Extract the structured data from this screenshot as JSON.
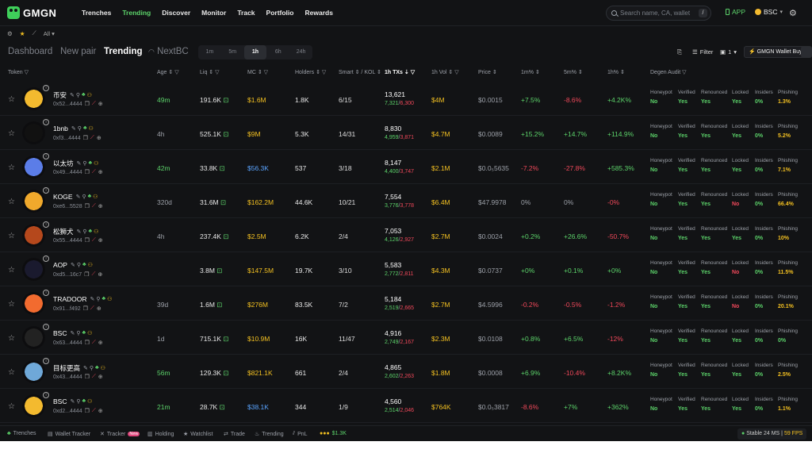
{
  "nav": {
    "brand": "GMGN",
    "links": [
      "Trenches",
      "Trending",
      "Discover",
      "Monitor",
      "Track",
      "Portfolio",
      "Rewards"
    ],
    "active_link": "Trending",
    "search_placeholder": "Search name, CA, wallet",
    "search_shortcut": "/",
    "app_label": "APP",
    "chain": "BSC"
  },
  "subbar": {
    "filter_label": "All"
  },
  "tabs": {
    "items": [
      "Dashboard",
      "New pair",
      "Trending",
      "NextBC"
    ],
    "active": "Trending",
    "timeframes": [
      "1m",
      "5m",
      "1h",
      "6h",
      "24h"
    ],
    "active_timeframe": "1h",
    "filter_label": "Filter",
    "preset": "1",
    "wallet_buy": "GMGN Wallet Buy"
  },
  "columns": {
    "token": "Token",
    "age": "Age",
    "liq": "Liq",
    "mc": "MC",
    "holders": "Holders",
    "smart": "Smart",
    "kol": "KOL",
    "txs": "1h TXs",
    "vol": "1h Vol",
    "price": "Price",
    "p1m": "1m%",
    "p5m": "5m%",
    "p1h": "1h%",
    "audit": "Degen Audit"
  },
  "audit_labels": [
    "Honeypot",
    "Verified",
    "Renounced",
    "Locked",
    "Insiders",
    "Phishing"
  ],
  "rows": [
    {
      "name": "币安",
      "addr": "0x52...4444",
      "age": "49m",
      "age_color": "#5cd36a",
      "liq": "191.6K",
      "mc": "$1.6M",
      "mc_color": "#f3c021",
      "holders": "1.8K",
      "smart": "6/15",
      "txs": "13,621",
      "buys": "7,321",
      "sells": "6,300",
      "vol": "$4M",
      "price": "$0.0015",
      "p1m": "+7.5%",
      "p5m": "-8.6%",
      "p1h": "+4.2K%",
      "audit": [
        "No",
        "Yes",
        "Yes",
        "Yes",
        "0%",
        "1.3%"
      ],
      "avatar": "#f3ba2f"
    },
    {
      "name": "1bnb",
      "addr": "0xf3...4444",
      "age": "4h",
      "age_color": "#9ca0a8",
      "liq": "525.1K",
      "mc": "$9M",
      "mc_color": "#f3c021",
      "holders": "5.3K",
      "smart": "14/31",
      "txs": "8,830",
      "buys": "4,959",
      "sells": "3,871",
      "vol": "$4.7M",
      "price": "$0.0089",
      "p1m": "+15.2%",
      "p5m": "+14.7%",
      "p1h": "+114.9%",
      "audit": [
        "No",
        "Yes",
        "Yes",
        "Yes",
        "0%",
        "5.2%"
      ],
      "avatar": "#111111"
    },
    {
      "name": "以太坊",
      "addr": "0x49...4444",
      "age": "42m",
      "age_color": "#5cd36a",
      "liq": "33.8K",
      "mc": "$56.3K",
      "mc_color": "#5aa4ff",
      "holders": "537",
      "smart": "3/18",
      "txs": "8,147",
      "buys": "4,400",
      "sells": "3,747",
      "vol": "$2.1M",
      "price": "$0.0₅5635",
      "p1m": "-7.2%",
      "p5m": "-27.8%",
      "p1h": "+585.3%",
      "audit": [
        "No",
        "Yes",
        "Yes",
        "Yes",
        "0%",
        "7.1%"
      ],
      "avatar": "#5b7de8"
    },
    {
      "name": "KOGE",
      "addr": "0xe6...5528",
      "age": "320d",
      "age_color": "#9ca0a8",
      "liq": "31.6M",
      "mc": "$162.2M",
      "mc_color": "#f3c021",
      "holders": "44.6K",
      "smart": "10/21",
      "txs": "7,554",
      "buys": "3,776",
      "sells": "3,778",
      "vol": "$6.4M",
      "price": "$47.9978",
      "p1m": "0%",
      "p5m": "0%",
      "p1h": "-0%",
      "audit": [
        "No",
        "Yes",
        "Yes",
        "No",
        "0%",
        "66.4%"
      ],
      "avatar": "#f0a92c"
    },
    {
      "name": "松狮犬",
      "addr": "0x55...4444",
      "age": "4h",
      "age_color": "#9ca0a8",
      "liq": "237.4K",
      "mc": "$2.5M",
      "mc_color": "#f3c021",
      "holders": "6.2K",
      "smart": "2/4",
      "txs": "7,053",
      "buys": "4,126",
      "sells": "2,927",
      "vol": "$2.7M",
      "price": "$0.0024",
      "p1m": "+0.2%",
      "p5m": "+26.6%",
      "p1h": "-50.7%",
      "audit": [
        "No",
        "Yes",
        "Yes",
        "Yes",
        "0%",
        "10%"
      ],
      "avatar": "#b5481c"
    },
    {
      "name": "AOP",
      "addr": "0xd5...16c7",
      "age": "",
      "age_color": "#9ca0a8",
      "liq": "3.8M",
      "mc": "$147.5M",
      "mc_color": "#f3c021",
      "holders": "19.7K",
      "smart": "3/10",
      "txs": "5,583",
      "buys": "2,772",
      "sells": "2,811",
      "vol": "$4.3M",
      "price": "$0.0737",
      "p1m": "+0%",
      "p5m": "+0.1%",
      "p1h": "+0%",
      "audit": [
        "No",
        "Yes",
        "Yes",
        "No",
        "0%",
        "11.5%"
      ],
      "avatar": "#1a1a2e"
    },
    {
      "name": "TRADOOR",
      "addr": "0x91...f492",
      "age": "39d",
      "age_color": "#9ca0a8",
      "liq": "1.6M",
      "mc": "$276M",
      "mc_color": "#f3c021",
      "holders": "83.5K",
      "smart": "7/2",
      "txs": "5,184",
      "buys": "2,519",
      "sells": "2,665",
      "vol": "$2.7M",
      "price": "$4.5996",
      "p1m": "-0.2%",
      "p5m": "-0.5%",
      "p1h": "-1.2%",
      "audit": [
        "No",
        "Yes",
        "Yes",
        "No",
        "0%",
        "20.1%"
      ],
      "avatar": "#f26b2f"
    },
    {
      "name": "BSC",
      "addr": "0x63...4444",
      "age": "1d",
      "age_color": "#9ca0a8",
      "liq": "715.1K",
      "mc": "$10.9M",
      "mc_color": "#f3c021",
      "holders": "16K",
      "smart": "11/47",
      "txs": "4,916",
      "buys": "2,749",
      "sells": "2,167",
      "vol": "$2.3M",
      "price": "$0.0108",
      "p1m": "+0.8%",
      "p5m": "+6.5%",
      "p1h": "-12%",
      "audit": [
        "No",
        "Yes",
        "Yes",
        "Yes",
        "0%",
        "0%"
      ],
      "avatar": "#222222"
    },
    {
      "name": "目标更高",
      "addr": "0x43...4444",
      "age": "56m",
      "age_color": "#5cd36a",
      "liq": "129.3K",
      "mc": "$821.1K",
      "mc_color": "#f3c021",
      "holders": "661",
      "smart": "2/4",
      "txs": "4,865",
      "buys": "2,602",
      "sells": "2,263",
      "vol": "$1.8M",
      "price": "$0.0008",
      "p1m": "+6.9%",
      "p5m": "-10.4%",
      "p1h": "+8.2K%",
      "audit": [
        "No",
        "Yes",
        "Yes",
        "Yes",
        "0%",
        "2.5%"
      ],
      "avatar": "#6fa8d8"
    },
    {
      "name": "BSC",
      "addr": "0xd2...4444",
      "age": "21m",
      "age_color": "#5cd36a",
      "liq": "28.7K",
      "mc": "$38.1K",
      "mc_color": "#5aa4ff",
      "holders": "344",
      "smart": "1/9",
      "txs": "4,560",
      "buys": "2,514",
      "sells": "2,046",
      "vol": "$764K",
      "price": "$0.0₅3817",
      "p1m": "-8.6%",
      "p5m": "+7%",
      "p1h": "+362%",
      "audit": [
        "No",
        "Yes",
        "Yes",
        "Yes",
        "0%",
        "1.1%"
      ],
      "avatar": "#f3ba2f"
    }
  ],
  "bottom": {
    "items": [
      "Trenches",
      "Wallet Tracker",
      "Tracker",
      "Holding",
      "Watchlist",
      "Trade",
      "Trending",
      "PnL"
    ],
    "tracker_badge": "New",
    "balance": "$1.3K",
    "status": "Stable",
    "latency": "24 MS",
    "fps": "59 FPS"
  },
  "colors": {
    "green": "#5cd36a",
    "red": "#f0485a",
    "yellow": "#f3c021",
    "blue": "#5aa4ff",
    "bg": "#121315"
  }
}
